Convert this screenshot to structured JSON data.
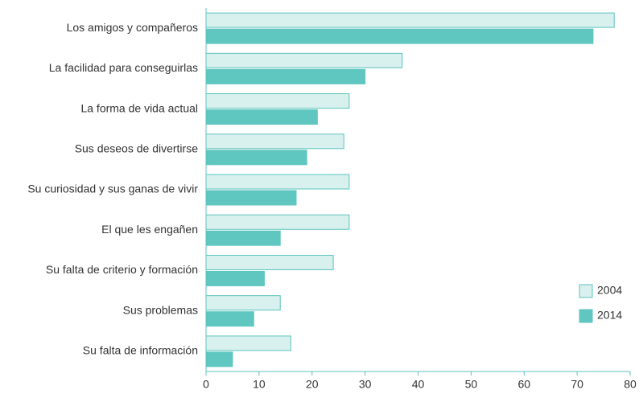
{
  "chart_data": {
    "type": "hbar",
    "categories": [
      "Los amigos y compañeros",
      "La facilidad para conseguirlas",
      "La forma de vida actual",
      "Sus deseos de divertirse",
      "Su curiosidad y sus ganas de vivir",
      "El que les engañen",
      "Su falta de criterio y formación",
      "Sus problemas",
      "Su falta de información"
    ],
    "series": [
      {
        "name": "2004",
        "color": "#d8f0ee",
        "edge": "#5cc4bd",
        "values": [
          77,
          37,
          27,
          26,
          27,
          27,
          24,
          14,
          16
        ]
      },
      {
        "name": "2014",
        "color": "#5fc6c0",
        "edge": "#5fc6c0",
        "values": [
          73,
          30,
          21,
          19,
          17,
          14,
          11,
          9,
          5
        ]
      }
    ],
    "xlim": [
      0,
      80
    ],
    "xticks": [
      0,
      10,
      20,
      30,
      40,
      50,
      60,
      70,
      80
    ],
    "legend": "lower right"
  }
}
